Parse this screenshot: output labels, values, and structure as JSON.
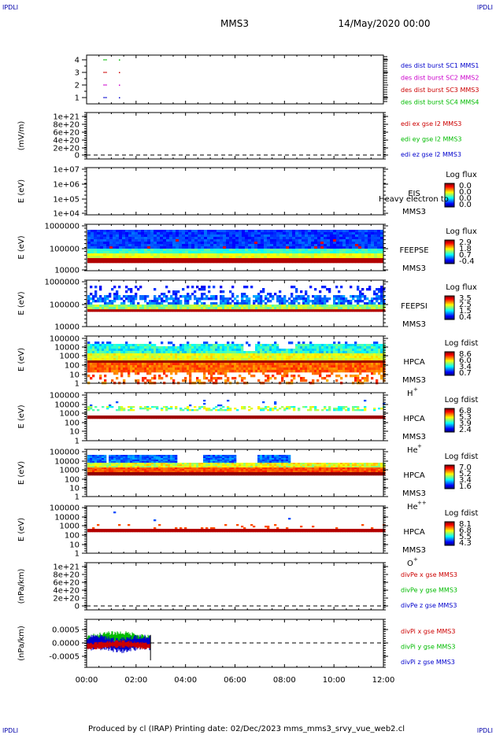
{
  "header": {
    "corner_tl": "IPDLI",
    "corner_tr": "IPDLI",
    "corner_bl": "IPDLI",
    "corner_br": "IPDLI",
    "spacecraft": "MMS3",
    "datetime": "14/May/2020 00:00"
  },
  "footer": {
    "text": "Produced by cl (IRAP)   Printing date: 02/Dec/2023   mms_mms3_srvy_vue_web2.cl"
  },
  "colors": {
    "blue": "#0000cc",
    "magenta": "#cc00cc",
    "red": "#cc0000",
    "green": "#00bb00"
  },
  "panels": [
    {
      "id": "burst",
      "ylabel": "",
      "ticks": [
        "4",
        "3",
        "2",
        "1"
      ],
      "legend": [
        {
          "text": "des dist burst SC1 MMS1",
          "color": "#0000cc"
        },
        {
          "text": "des dist burst SC2 MMS2",
          "color": "#cc00cc"
        },
        {
          "text": "des dist burst SC3 MMS3",
          "color": "#cc0000"
        },
        {
          "text": "des dist burst SC4 MMS4",
          "color": "#00bb00"
        }
      ]
    },
    {
      "id": "edi",
      "ylabel": "(mV/m)",
      "ticks": [
        "1e+21",
        "8e+20",
        "6e+20",
        "4e+20",
        "2e+20",
        "0"
      ],
      "legend": [
        {
          "text": "edi ex gse l2 MMS3",
          "color": "#cc0000"
        },
        {
          "text": "edi ey gse l2 MMS3",
          "color": "#00bb00"
        },
        {
          "text": "edi ez gse l2 MMS3",
          "color": "#0000cc"
        }
      ]
    },
    {
      "id": "eis",
      "ylabel": "E (eV)",
      "ticks": [
        "1e+07",
        "1e+06",
        "1e+05",
        "1e+04"
      ],
      "instrument": "EIS",
      "sc": "MMS3",
      "overlay": "Heavy electron to",
      "cbar_title": "Log flux",
      "cbar_ticks": [
        "0.0",
        "0.0",
        "0.0",
        "0.0"
      ]
    },
    {
      "id": "feepse",
      "ylabel": "E (eV)",
      "ticks": [
        "1000000",
        "100000",
        "10000"
      ],
      "instrument": "FEEPSE",
      "sc": "MMS3",
      "cbar_title": "Log flux",
      "cbar_ticks": [
        "2.9",
        "1.8",
        "0.7",
        "-0.4"
      ]
    },
    {
      "id": "feepsi",
      "ylabel": "E (eV)",
      "ticks": [
        "1000000",
        "100000",
        "10000"
      ],
      "instrument": "FEEPSI",
      "sc": "MMS3",
      "cbar_title": "Log flux",
      "cbar_ticks": [
        "3.5",
        "2.5",
        "1.5",
        "0.4"
      ]
    },
    {
      "id": "hpca_h",
      "ylabel": "E (eV)",
      "ticks": [
        "100000",
        "10000",
        "1000",
        "100",
        "10",
        "1"
      ],
      "instrument": "HPCA",
      "sc": "MMS3",
      "species": "H",
      "charge": "+",
      "cbar_title": "Log fdist",
      "cbar_ticks": [
        "8.6",
        "6.0",
        "3.4",
        "0.7"
      ]
    },
    {
      "id": "hpca_he",
      "ylabel": "E (eV)",
      "ticks": [
        "100000",
        "10000",
        "1000",
        "100",
        "10",
        "1"
      ],
      "instrument": "HPCA",
      "sc": "MMS3",
      "species": "He",
      "charge": "+",
      "cbar_title": "Log fdist",
      "cbar_ticks": [
        "6.8",
        "5.3",
        "3.9",
        "2.4"
      ]
    },
    {
      "id": "hpca_hepp",
      "ylabel": "E (eV)",
      "ticks": [
        "100000",
        "10000",
        "1000",
        "100",
        "10",
        "1"
      ],
      "instrument": "HPCA",
      "sc": "MMS3",
      "species": "He",
      "charge": "++",
      "cbar_title": "Log fdist",
      "cbar_ticks": [
        "7.0",
        "5.2",
        "3.4",
        "1.6"
      ]
    },
    {
      "id": "hpca_o",
      "ylabel": "E (eV)",
      "ticks": [
        "100000",
        "10000",
        "1000",
        "100",
        "10",
        "1"
      ],
      "instrument": "HPCA",
      "sc": "MMS3",
      "species": "O",
      "charge": "+",
      "cbar_title": "Log fdist",
      "cbar_ticks": [
        "8.1",
        "6.8",
        "5.5",
        "4.3"
      ]
    },
    {
      "id": "divpe",
      "ylabel": "(nPa/km)",
      "ticks": [
        "1e+21",
        "8e+20",
        "6e+20",
        "4e+20",
        "2e+20",
        "0"
      ],
      "legend": [
        {
          "text": "divPe x gse MMS3",
          "color": "#cc0000"
        },
        {
          "text": "divPe y gse MMS3",
          "color": "#00bb00"
        },
        {
          "text": "divPe z gse MMS3",
          "color": "#0000cc"
        }
      ]
    },
    {
      "id": "divpi",
      "ylabel": "(nPa/km)",
      "ticks": [
        "0.0005",
        "0.0000",
        "-0.0005"
      ],
      "legend": [
        {
          "text": "divPi x gse MMS3",
          "color": "#cc0000"
        },
        {
          "text": "divPi y gse MMS3",
          "color": "#00bb00"
        },
        {
          "text": "divPi z gse MMS3",
          "color": "#0000cc"
        }
      ]
    }
  ],
  "chart_data": {
    "type": "heatmap",
    "title": "MMS3",
    "xlabel": "",
    "x_ticks": [
      "00:00",
      "02:00",
      "04:00",
      "06:00",
      "08:00",
      "10:00",
      "12:00"
    ],
    "xlim": [
      "00:00",
      "12:00"
    ],
    "series": [
      {
        "panel": "divpi",
        "name": "divPi x gse MMS3",
        "x_end": "02:35",
        "y_range": [
          -0.0003,
          0.0003
        ]
      },
      {
        "panel": "divpi",
        "name": "divPi y gse MMS3",
        "x_end": "02:35",
        "y_range": [
          -0.0002,
          0.0001
        ]
      },
      {
        "panel": "divpi",
        "name": "divPi z gse MMS3",
        "x_end": "02:35",
        "y_range": [
          -0.0001,
          0.0004
        ]
      }
    ]
  }
}
